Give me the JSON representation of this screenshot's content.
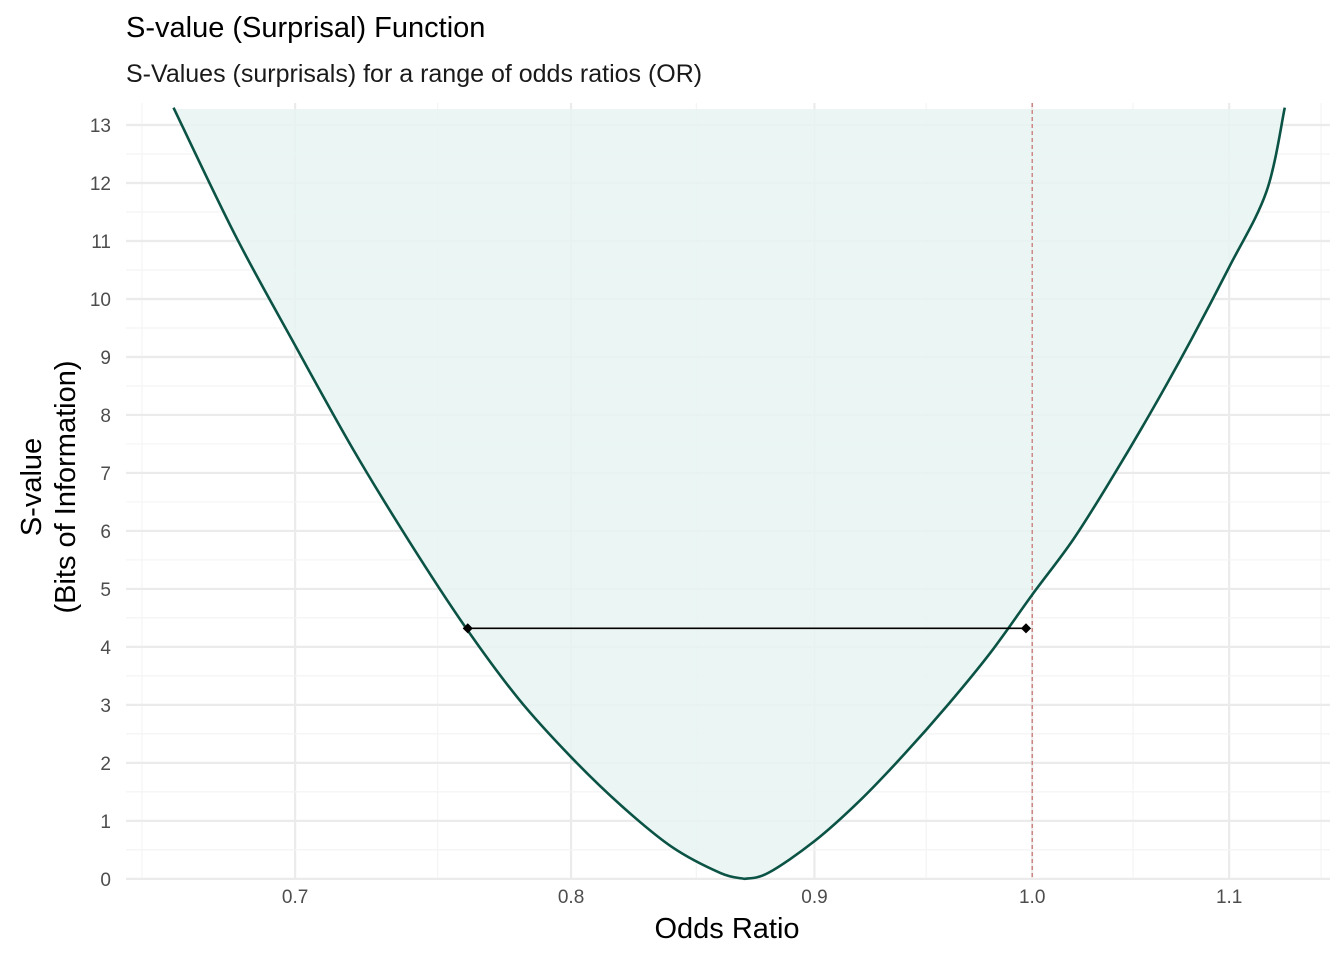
{
  "chart_data": {
    "type": "line",
    "title": "S-value (Surprisal) Function",
    "subtitle": "S-Values (surprisals) for a range of odds ratios (OR)",
    "xlabel": "Odds Ratio",
    "ylabel_lines": [
      "S-value",
      "(Bits of Information)"
    ],
    "x_scale": "log",
    "xlim": [
      0.645,
      1.155
    ],
    "ylim": [
      -0.02,
      13.38
    ],
    "x_ticks": [
      {
        "value": 0.7,
        "label": "0.7"
      },
      {
        "value": 0.8,
        "label": "0.8"
      },
      {
        "value": 0.9,
        "label": "0.9"
      },
      {
        "value": 1.0,
        "label": "1.0"
      },
      {
        "value": 1.1,
        "label": "1.1"
      }
    ],
    "x_minor_ticks": [
      0.65,
      0.75,
      0.85,
      0.95,
      1.05,
      1.15
    ],
    "y_ticks": [
      0,
      1,
      2,
      3,
      4,
      5,
      6,
      7,
      8,
      9,
      10,
      11,
      12,
      13
    ],
    "grid": true,
    "legend": "none",
    "curve": {
      "point_estimate_or": 0.87,
      "x": [
        0.66,
        0.68,
        0.7,
        0.72,
        0.74,
        0.76,
        0.78,
        0.8,
        0.82,
        0.84,
        0.86,
        0.87,
        0.88,
        0.9,
        0.92,
        0.94,
        0.96,
        0.98,
        1.0,
        1.02,
        1.04,
        1.06,
        1.08,
        1.1,
        1.12,
        1.13
      ],
      "y": [
        13.3,
        11.1,
        9.2,
        7.4,
        5.8,
        4.35,
        3.1,
        2.1,
        1.25,
        0.55,
        0.1,
        0.0,
        0.1,
        0.65,
        1.35,
        2.15,
        3.0,
        3.9,
        4.9,
        5.85,
        6.95,
        8.1,
        9.3,
        10.55,
        11.85,
        13.3
      ]
    },
    "interval": {
      "lower": 0.761,
      "upper": 0.997,
      "s_value": 4.32
    },
    "reference_line_x": 1.0,
    "colors": {
      "curve": "#0b5345",
      "fill": "#e8f4f2",
      "interval": "#000000",
      "reference": "#c0504d",
      "grid_major": "#ebebeb",
      "grid_minor": "#f4f4f4",
      "text": "#000000",
      "tick_text": "#4d4d4d"
    }
  }
}
